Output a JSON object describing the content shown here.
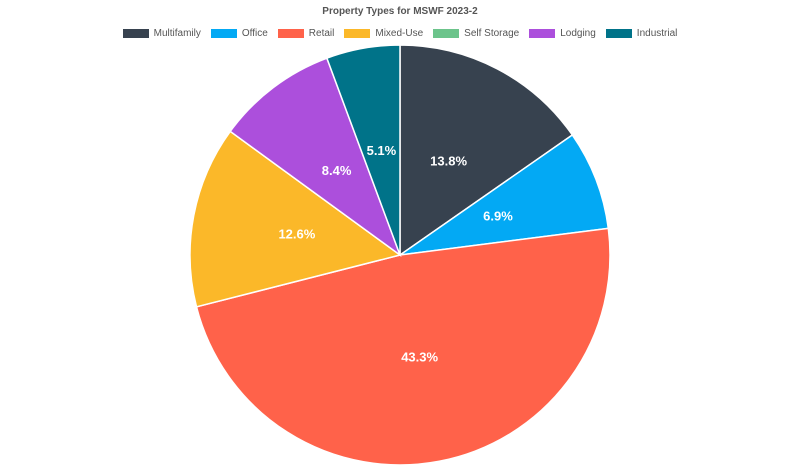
{
  "chart_data": {
    "type": "pie",
    "title": "Property Types for MSWF 2023-2",
    "legend_position": "top",
    "slices": [
      {
        "name": "Multifamily",
        "value": 13.8,
        "label": "13.8%",
        "color": "#37424f"
      },
      {
        "name": "Office",
        "value": 6.9,
        "label": "6.9%",
        "color": "#03a9f4"
      },
      {
        "name": "Retail",
        "value": 43.3,
        "label": "43.3%",
        "color": "#ff624a"
      },
      {
        "name": "Mixed-Use",
        "value": 12.6,
        "label": "12.6%",
        "color": "#fbb829"
      },
      {
        "name": "Self Storage",
        "value": 0,
        "label": "",
        "color": "#6cc48b"
      },
      {
        "name": "Lodging",
        "value": 8.4,
        "label": "8.4%",
        "color": "#ac4fdc"
      },
      {
        "name": "Industrial",
        "value": 5.1,
        "label": "5.1%",
        "color": "#007389"
      }
    ]
  }
}
